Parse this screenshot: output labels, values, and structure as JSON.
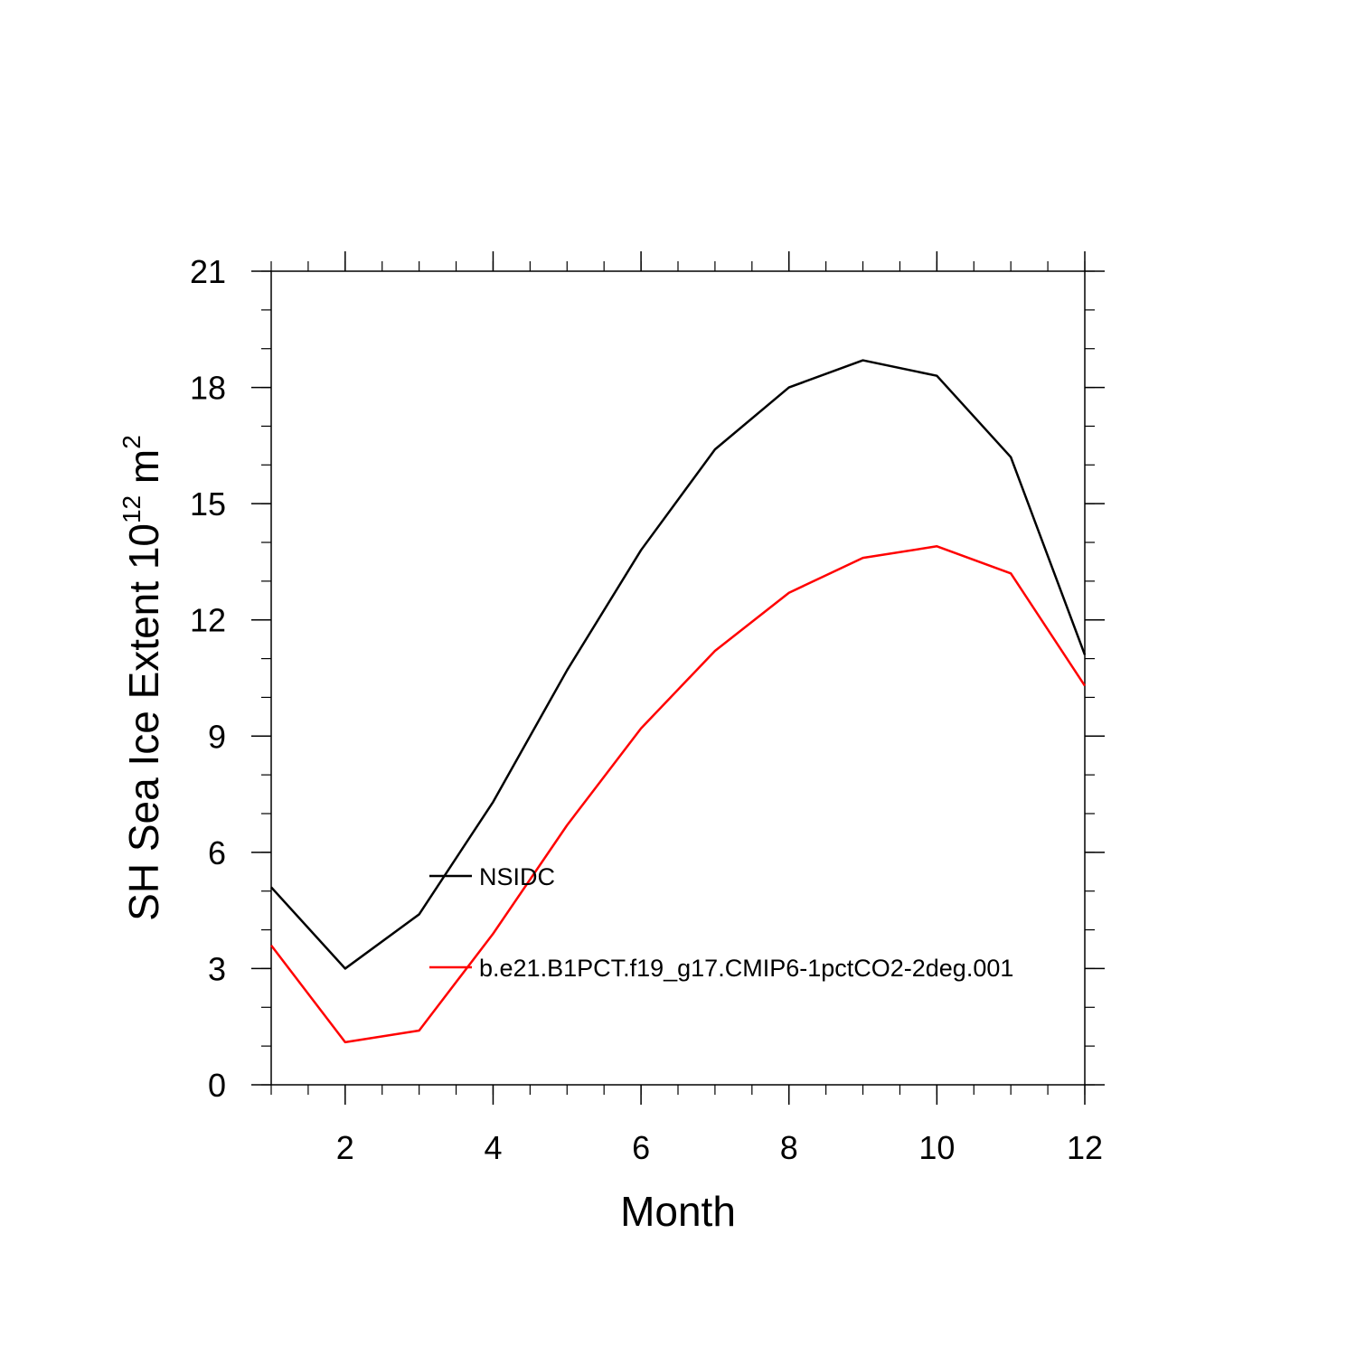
{
  "chart_data": {
    "type": "line",
    "title": "",
    "xlabel": "Month",
    "ylabel": {
      "main": "SH Sea Ice Extent 10",
      "exponent": "12",
      "unit": "m",
      "unit_exponent": "2"
    },
    "xlim": [
      1,
      12
    ],
    "ylim": [
      0,
      21
    ],
    "x_ticks": [
      2,
      4,
      6,
      8,
      10,
      12
    ],
    "y_ticks": [
      0,
      3,
      6,
      9,
      12,
      15,
      18,
      21
    ],
    "x": [
      1,
      2,
      3,
      4,
      5,
      6,
      7,
      8,
      9,
      10,
      11,
      12
    ],
    "grid": false,
    "legend_position": "inside-center",
    "series": [
      {
        "name": "NSIDC",
        "color": "#000000",
        "values": [
          5.1,
          3.0,
          4.4,
          7.3,
          10.7,
          13.8,
          16.4,
          18.0,
          18.7,
          18.3,
          16.2,
          11.1
        ]
      },
      {
        "name": "b.e21.B1PCT.f19_g17.CMIP6-1pctCO2-2deg.001",
        "color": "#ff0000",
        "values": [
          3.6,
          1.1,
          1.4,
          3.9,
          6.7,
          9.2,
          11.2,
          12.7,
          13.6,
          13.9,
          13.2,
          10.3
        ]
      }
    ]
  }
}
